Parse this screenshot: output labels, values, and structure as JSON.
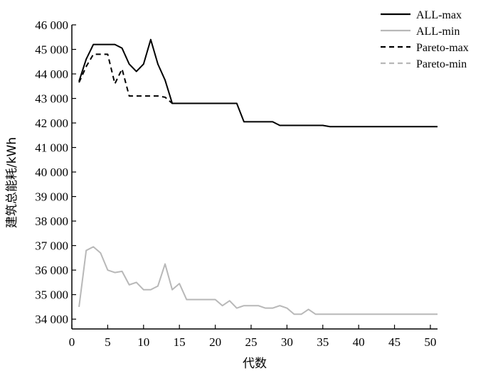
{
  "chart_data": {
    "type": "line",
    "xlabel": "代数",
    "ylabel": "建筑总能耗/kWh",
    "xlim": [
      0,
      51
    ],
    "ylim": [
      33600,
      46000
    ],
    "xticks": [
      0,
      5,
      10,
      15,
      20,
      25,
      30,
      35,
      40,
      45,
      50
    ],
    "xtick_labels": [
      "0",
      "5",
      "10",
      "15",
      "20",
      "25",
      "30",
      "35",
      "40",
      "45",
      "50"
    ],
    "yticks": [
      34000,
      35000,
      36000,
      37000,
      38000,
      39000,
      40000,
      41000,
      42000,
      43000,
      44000,
      45000,
      46000
    ],
    "ytick_labels": [
      "34 000",
      "35 000",
      "36 000",
      "37 000",
      "38 000",
      "39 000",
      "40 000",
      "41 000",
      "42 000",
      "43 000",
      "44 000",
      "45 000",
      "46 000"
    ],
    "grid": false,
    "legend_position": "top-right",
    "series": [
      {
        "name": "ALL-max",
        "color": "#000000",
        "dash": "solid",
        "points": [
          [
            1,
            43700
          ],
          [
            2,
            44600
          ],
          [
            3,
            45200
          ],
          [
            4,
            45200
          ],
          [
            5,
            45200
          ],
          [
            6,
            45200
          ],
          [
            7,
            45050
          ],
          [
            8,
            44400
          ],
          [
            9,
            44100
          ],
          [
            10,
            44400
          ],
          [
            11,
            45400
          ],
          [
            12,
            44400
          ],
          [
            13,
            43750
          ],
          [
            14,
            42800
          ],
          [
            15,
            42800
          ],
          [
            20,
            42800
          ],
          [
            23,
            42800
          ],
          [
            24,
            42050
          ],
          [
            28,
            42050
          ],
          [
            29,
            41900
          ],
          [
            35,
            41900
          ],
          [
            36,
            41850
          ],
          [
            51,
            41850
          ]
        ]
      },
      {
        "name": "ALL-min",
        "color": "#b8b8b8",
        "dash": "solid",
        "points": [
          [
            1,
            34500
          ],
          [
            2,
            36800
          ],
          [
            3,
            36950
          ],
          [
            4,
            36700
          ],
          [
            5,
            36000
          ],
          [
            6,
            35900
          ],
          [
            7,
            35950
          ],
          [
            8,
            35400
          ],
          [
            9,
            35500
          ],
          [
            10,
            35200
          ],
          [
            11,
            35200
          ],
          [
            12,
            35350
          ],
          [
            13,
            36250
          ],
          [
            14,
            35200
          ],
          [
            15,
            35450
          ],
          [
            16,
            34800
          ],
          [
            20,
            34800
          ],
          [
            21,
            34550
          ],
          [
            22,
            34750
          ],
          [
            23,
            34450
          ],
          [
            24,
            34550
          ],
          [
            26,
            34550
          ],
          [
            27,
            34450
          ],
          [
            28,
            34450
          ],
          [
            29,
            34550
          ],
          [
            30,
            34450
          ],
          [
            31,
            34200
          ],
          [
            32,
            34200
          ],
          [
            33,
            34400
          ],
          [
            34,
            34200
          ],
          [
            51,
            34200
          ]
        ]
      },
      {
        "name": "Pareto-max",
        "color": "#000000",
        "dash": "dashed",
        "points": [
          [
            1,
            43650
          ],
          [
            2,
            44300
          ],
          [
            3,
            44800
          ],
          [
            4,
            44800
          ],
          [
            5,
            44800
          ],
          [
            6,
            43600
          ],
          [
            7,
            44200
          ],
          [
            8,
            43100
          ],
          [
            9,
            43100
          ],
          [
            10,
            43100
          ],
          [
            11,
            43100
          ],
          [
            12,
            43100
          ],
          [
            13,
            43050
          ],
          [
            14,
            42800
          ],
          [
            15,
            42800
          ]
        ]
      },
      {
        "name": "Pareto-min",
        "color": "#b8b8b8",
        "dash": "dashed",
        "points": []
      }
    ]
  }
}
